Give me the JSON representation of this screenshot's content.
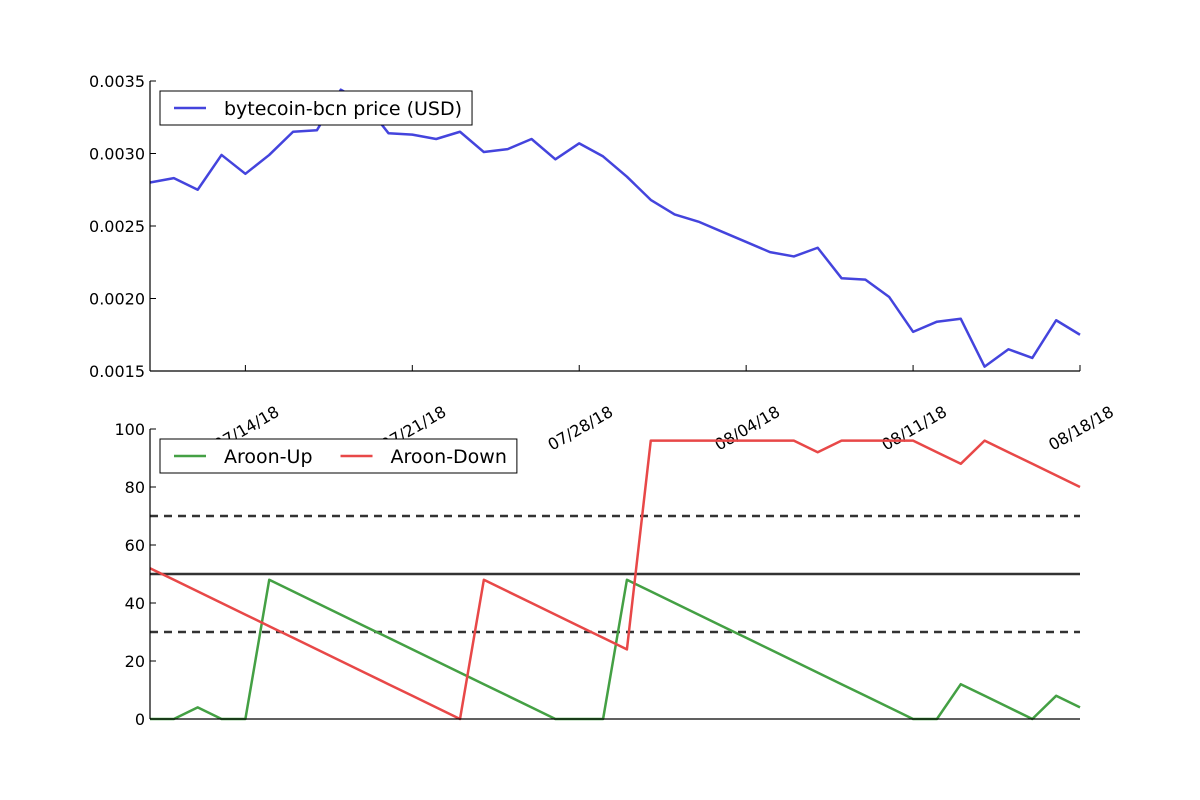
{
  "chart_data": [
    {
      "type": "line",
      "title": "",
      "xlabel": "",
      "ylabel": "",
      "x": [
        "07/10/18",
        "07/11/18",
        "07/12/18",
        "07/13/18",
        "07/14/18",
        "07/15/18",
        "07/16/18",
        "07/17/18",
        "07/18/18",
        "07/19/18",
        "07/20/18",
        "07/21/18",
        "07/22/18",
        "07/23/18",
        "07/24/18",
        "07/25/18",
        "07/26/18",
        "07/27/18",
        "07/28/18",
        "07/29/18",
        "07/30/18",
        "07/31/18",
        "08/01/18",
        "08/02/18",
        "08/03/18",
        "08/04/18",
        "08/05/18",
        "08/06/18",
        "08/07/18",
        "08/08/18",
        "08/09/18",
        "08/10/18",
        "08/11/18",
        "08/12/18",
        "08/13/18",
        "08/14/18",
        "08/15/18",
        "08/16/18",
        "08/17/18",
        "08/18/18"
      ],
      "series": [
        {
          "name": "bytecoin-bcn price (USD)",
          "color": "#4444dd",
          "values": [
            0.0028,
            0.00283,
            0.00275,
            0.00299,
            0.00286,
            0.00299,
            0.00315,
            0.00316,
            0.00344,
            0.00335,
            0.00314,
            0.00313,
            0.0031,
            0.00315,
            0.00301,
            0.00303,
            0.0031,
            0.00296,
            0.00307,
            0.00298,
            0.00284,
            0.00268,
            0.00258,
            0.00253,
            0.00246,
            0.00239,
            0.00232,
            0.00229,
            0.00235,
            0.00214,
            0.00213,
            0.00201,
            0.00177,
            0.00184,
            0.00186,
            0.00153,
            0.00165,
            0.00159,
            0.00185,
            0.00175
          ]
        }
      ],
      "ylim": [
        0.0015,
        0.0035
      ],
      "yticks": [
        "0.0015",
        "0.0020",
        "0.0025",
        "0.0030",
        "0.0035"
      ],
      "xticks": [
        "07/14/18",
        "07/21/18",
        "07/28/18",
        "08/04/18",
        "08/11/18",
        "08/18/18"
      ],
      "legend_position": "top-left",
      "grid": false
    },
    {
      "type": "line",
      "title": "",
      "xlabel": "",
      "ylabel": "",
      "x": [
        "07/10/18",
        "07/11/18",
        "07/12/18",
        "07/13/18",
        "07/14/18",
        "07/15/18",
        "07/16/18",
        "07/17/18",
        "07/18/18",
        "07/19/18",
        "07/20/18",
        "07/21/18",
        "07/22/18",
        "07/23/18",
        "07/24/18",
        "07/25/18",
        "07/26/18",
        "07/27/18",
        "07/28/18",
        "07/29/18",
        "07/30/18",
        "07/31/18",
        "08/01/18",
        "08/02/18",
        "08/03/18",
        "08/04/18",
        "08/05/18",
        "08/06/18",
        "08/07/18",
        "08/08/18",
        "08/09/18",
        "08/10/18",
        "08/11/18",
        "08/12/18",
        "08/13/18",
        "08/14/18",
        "08/15/18",
        "08/16/18",
        "08/17/18",
        "08/18/18"
      ],
      "series": [
        {
          "name": "Aroon-Up",
          "color": "#44a044",
          "values": [
            0,
            0,
            4,
            0,
            0,
            48,
            44,
            40,
            36,
            32,
            28,
            24,
            20,
            16,
            12,
            8,
            4,
            0,
            0,
            0,
            48,
            44,
            40,
            36,
            32,
            28,
            24,
            20,
            16,
            12,
            8,
            4,
            0,
            0,
            12,
            8,
            4,
            0,
            8,
            4
          ]
        },
        {
          "name": "Aroon-Down",
          "color": "#e84848",
          "values": [
            52,
            48,
            44,
            40,
            36,
            32,
            28,
            24,
            20,
            16,
            12,
            8,
            4,
            0,
            48,
            44,
            40,
            36,
            32,
            28,
            24,
            96,
            96,
            96,
            96,
            96,
            96,
            96,
            92,
            96,
            96,
            96,
            96,
            92,
            88,
            96,
            92,
            88,
            84,
            80
          ]
        }
      ],
      "reference_lines": [
        {
          "y": 70,
          "style": "dashed"
        },
        {
          "y": 50,
          "style": "solid"
        },
        {
          "y": 30,
          "style": "dashed"
        }
      ],
      "ylim": [
        0,
        100
      ],
      "yticks": [
        "0",
        "20",
        "40",
        "60",
        "80",
        "100"
      ],
      "legend_position": "top-left",
      "grid": false
    }
  ]
}
